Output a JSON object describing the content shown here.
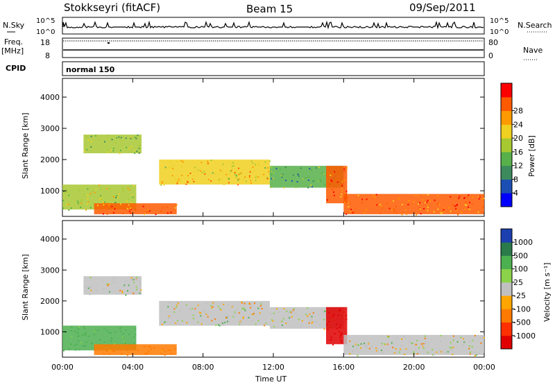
{
  "header": {
    "title": "Stokkseyri (fitACF)",
    "beam": "Beam 15",
    "date": "09/Sep/2011"
  },
  "sky_panel": {
    "left_label": "N.Sky",
    "right_label": "N.Search",
    "top_tick": "10^5",
    "bottom_tick": "10^0"
  },
  "freq_panel": {
    "label_line1": "Freq.",
    "label_line2": "[MHz]",
    "ticks": [
      "18",
      "8"
    ],
    "right_label": "Nave",
    "right_ticks": [
      "80",
      "0"
    ]
  },
  "cpid_panel": {
    "label": "CPID",
    "mode": "normal 150"
  },
  "axes": {
    "ylabel": "Slant Range [km]",
    "xlabel": "Time UT",
    "y_ticks": [
      "1000",
      "2000",
      "3000",
      "4000"
    ],
    "y_range_km": [
      180,
      4600
    ],
    "x_ticks": [
      "00:00",
      "04:00",
      "08:00",
      "12:00",
      "16:00",
      "20:00",
      "00:00"
    ],
    "x_range_h": [
      0,
      24
    ]
  },
  "colorbars": {
    "power": {
      "label": "Power [dB]",
      "ticks": [
        "4",
        "8",
        "12",
        "16",
        "20",
        "24",
        "28"
      ],
      "colors": [
        "#0000ff",
        "#1c4fb4",
        "#3d8a5e",
        "#57b04a",
        "#a8c832",
        "#f0d020",
        "#ff9a00",
        "#ff5a00",
        "#ff0000"
      ]
    },
    "velocity": {
      "label": "Velocity [m s⁻¹]",
      "ticks": [
        "1000",
        "500",
        "100",
        "25",
        "-25",
        "-100",
        "-500",
        "-1000"
      ],
      "colors": [
        "#1c3fb0",
        "#2a7a4a",
        "#4caf50",
        "#8bd24a",
        "#c0c0c0",
        "#ffa500",
        "#ff7a00",
        "#ff3000",
        "#e00000"
      ]
    }
  },
  "chart_data": {
    "type": "heatmap",
    "title": "Stokkseyri (fitACF)",
    "xlabel": "Time UT",
    "ylabel": "Slant Range [km]",
    "xlim": [
      0,
      24
    ],
    "ylim": [
      180,
      4600
    ],
    "panels": [
      {
        "name": "Power",
        "unit": "dB",
        "regions": [
          {
            "t": [
              0.0,
              4.2
            ],
            "r": [
              400,
              1200
            ],
            "value": 18
          },
          {
            "t": [
              1.8,
              6.5
            ],
            "r": [
              250,
              600
            ],
            "value": 26
          },
          {
            "t": [
              1.2,
              4.5
            ],
            "r": [
              2200,
              2800
            ],
            "value": 16
          },
          {
            "t": [
              5.5,
              11.8
            ],
            "r": [
              1200,
              2000
            ],
            "value": 22
          },
          {
            "t": [
              11.8,
              16.0
            ],
            "r": [
              1100,
              1800
            ],
            "value": 14
          },
          {
            "t": [
              15.0,
              16.2
            ],
            "r": [
              600,
              1800
            ],
            "value": 28
          },
          {
            "t": [
              16.0,
              24.0
            ],
            "r": [
              250,
              900
            ],
            "value": 26
          }
        ]
      },
      {
        "name": "Velocity",
        "unit": "m/s",
        "regions": [
          {
            "t": [
              0.0,
              4.2
            ],
            "r": [
              400,
              1200
            ],
            "value": 120
          },
          {
            "t": [
              1.8,
              6.5
            ],
            "r": [
              250,
              600
            ],
            "value": -120
          },
          {
            "t": [
              1.2,
              4.5
            ],
            "r": [
              2200,
              2800
            ],
            "value": 0
          },
          {
            "t": [
              5.5,
              11.8
            ],
            "r": [
              1200,
              2000
            ],
            "value": 0
          },
          {
            "t": [
              11.8,
              16.0
            ],
            "r": [
              1100,
              1800
            ],
            "value": 0
          },
          {
            "t": [
              15.0,
              16.2
            ],
            "r": [
              600,
              1800
            ],
            "value": -1000
          },
          {
            "t": [
              16.0,
              24.0
            ],
            "r": [
              250,
              900
            ],
            "value": 0
          }
        ]
      }
    ]
  }
}
